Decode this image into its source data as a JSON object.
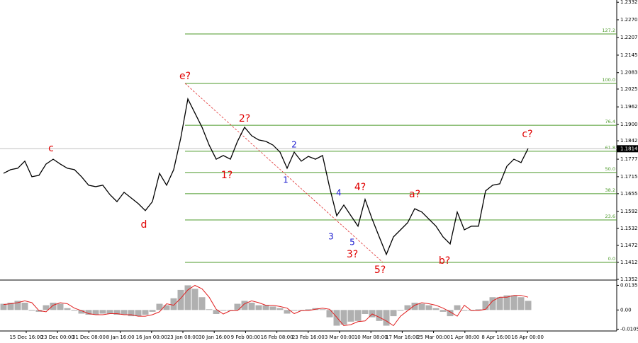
{
  "chart_data": [
    {
      "type": "line",
      "color": "#000000",
      "values": [
        1.1727,
        1.174,
        1.1745,
        1.177,
        1.1715,
        1.172,
        1.176,
        1.1777,
        1.176,
        1.1745,
        1.174,
        1.1715,
        1.1685,
        1.168,
        1.1685,
        1.1652,
        1.1627,
        1.166,
        1.164,
        1.162,
        1.1595,
        1.1627,
        1.1727,
        1.1685,
        1.174,
        1.1852,
        1.199,
        1.194,
        1.189,
        1.1827,
        1.1777,
        1.179,
        1.1777,
        1.184,
        1.189,
        1.186,
        1.1845,
        1.184,
        1.1827,
        1.1802,
        1.1745,
        1.1802,
        1.177,
        1.1787,
        1.1777,
        1.179,
        1.1677,
        1.1577,
        1.1615,
        1.1577,
        1.154,
        1.1635,
        1.1565,
        1.1502,
        1.144,
        1.1502,
        1.1527,
        1.1552,
        1.1602,
        1.159,
        1.1565,
        1.154,
        1.1502,
        1.1477,
        1.159,
        1.1527,
        1.154,
        1.154,
        1.1665,
        1.1685,
        1.169,
        1.1752,
        1.1777,
        1.1765,
        1.1815
      ],
      "ylim": [
        1.1352,
        1.234
      ],
      "yticks": [
        1.2332,
        {
          "value": 1.227,
          "label": "1.2270"
        },
        1.2207,
        1.2145,
        1.2083,
        1.2025,
        1.1962,
        {
          "value": 1.19,
          "label": "1.1900"
        },
        1.1842,
        1.1777,
        1.1715,
        1.1655,
        1.1592,
        1.1532,
        1.1472,
        1.1412,
        1.1352
      ],
      "current_price": 1.1814,
      "time_labels": [
        "15 Dec 16:00",
        "23 Dec 00:00",
        "31 Dec 08:00",
        "8 Jan 16:00",
        "16 Jan 00:00",
        "23 Jan 08:00",
        "30 Jan 16:00",
        "9 Feb 00:00",
        "16 Feb 08:00",
        "23 Feb 16:00",
        "3 Mar 00:00",
        "10 Mar 08:00",
        "17 Mar 16:00",
        "25 Mar 00:00",
        "1 Apr 08:00",
        "8 Apr 16:00",
        "16 Apr 00:00"
      ],
      "fib_color": "#4c9a2a",
      "fib_levels": [
        {
          "label": "0.0",
          "price": 1.1412
        },
        {
          "label": "23.6",
          "price": 1.1562
        },
        {
          "label": "38.2",
          "price": 1.1655
        },
        {
          "label": "50.0",
          "price": 1.173
        },
        {
          "label": "61.8",
          "price": 1.1805
        },
        {
          "label": "76.4",
          "price": 1.1897
        },
        {
          "label": "100.0",
          "price": 1.2045
        },
        {
          "label": "127.2",
          "price": 1.222
        }
      ],
      "trendline": {
        "i": [
          26.1,
          54
        ],
        "price": [
          1.2045,
          1.1412
        ],
        "color": "#e03030"
      },
      "waves": [
        {
          "text": "c",
          "i": 7.2,
          "price": 1.1815,
          "color": "#e00000"
        },
        {
          "text": "d",
          "i": 20.3,
          "price": 1.1545,
          "color": "#e00000"
        },
        {
          "text": "e?",
          "i": 26.1,
          "price": 1.207,
          "color": "#e00000"
        },
        {
          "text": "1?",
          "i": 32,
          "price": 1.172,
          "color": "#e00000"
        },
        {
          "text": "2?",
          "i": 34.5,
          "price": 1.192,
          "color": "#e00000"
        },
        {
          "text": "1",
          "i": 40.3,
          "price": 1.1702,
          "color": "#2020d0"
        },
        {
          "text": "2",
          "i": 41.5,
          "price": 1.1827,
          "color": "#2020d0"
        },
        {
          "text": "3",
          "i": 46.7,
          "price": 1.1502,
          "color": "#2020d0"
        },
        {
          "text": "4",
          "i": 47.8,
          "price": 1.1657,
          "color": "#2020d0"
        },
        {
          "text": "5",
          "i": 49.7,
          "price": 1.1482,
          "color": "#2020d0"
        },
        {
          "text": "3?",
          "i": 49.7,
          "price": 1.144,
          "color": "#e00000"
        },
        {
          "text": "4?",
          "i": 50.8,
          "price": 1.1677,
          "color": "#e00000"
        },
        {
          "text": "5?",
          "i": 53.6,
          "price": 1.1385,
          "color": "#e00000"
        },
        {
          "text": "a?",
          "i": 58.5,
          "price": 1.1652,
          "color": "#e00000"
        },
        {
          "text": "b?",
          "i": 62.7,
          "price": 1.1417,
          "color": "#e00000"
        },
        {
          "text": "c?",
          "i": 74.4,
          "price": 1.1865,
          "color": "#e00000"
        }
      ]
    },
    {
      "type": "bar",
      "color": "#b0b0b0",
      "values": [
        0.0034,
        0.004,
        0.005,
        0.004,
        -0.0004,
        -0.001,
        0.0026,
        0.004,
        0.0034,
        0.001,
        -0.0004,
        -0.002,
        -0.0026,
        -0.0026,
        -0.002,
        -0.002,
        -0.0026,
        -0.0026,
        -0.0034,
        -0.0034,
        -0.0026,
        -0.001,
        0.0034,
        0.0026,
        0.0064,
        0.011,
        0.0135,
        0.0116,
        0.007,
        0.0004,
        -0.0022,
        -0.0004,
        -0.0004,
        0.0034,
        0.005,
        0.004,
        0.0026,
        0.0026,
        0.0019,
        0.001,
        -0.002,
        -0.0004,
        -0.0004,
        0.0004,
        0.001,
        0.0004,
        -0.004,
        -0.0086,
        -0.008,
        -0.0064,
        -0.006,
        -0.0022,
        -0.004,
        -0.006,
        -0.0086,
        -0.0034,
        -0.0004,
        0.0026,
        0.004,
        0.0034,
        0.0026,
        0.001,
        -0.001,
        -0.0034,
        0.0026,
        -0.0004,
        -0.0004,
        0.0004,
        0.005,
        0.007,
        0.007,
        0.008,
        0.008,
        0.007,
        0.005
      ],
      "signal": {
        "color": "#e02020",
        "values": [
          0.003,
          0.0034,
          0.004,
          0.005,
          0.004,
          -0.0004,
          -0.001,
          0.0026,
          0.004,
          0.0034,
          0.001,
          -0.0004,
          -0.002,
          -0.0026,
          -0.0026,
          -0.002,
          -0.002,
          -0.0026,
          -0.0026,
          -0.0034,
          -0.0034,
          -0.0026,
          -0.001,
          0.0034,
          0.0026,
          0.0064,
          0.011,
          0.0135,
          0.0116,
          0.007,
          0.0004,
          -0.0022,
          -0.0004,
          -0.0004,
          0.0034,
          0.005,
          0.004,
          0.0026,
          0.0026,
          0.0019,
          0.001,
          -0.002,
          -0.0004,
          -0.0004,
          0.0004,
          0.001,
          0.0004,
          -0.004,
          -0.0086,
          -0.008,
          -0.0064,
          -0.006,
          -0.0022,
          -0.004,
          -0.006,
          -0.0086,
          -0.0034,
          -0.0004,
          0.0026,
          0.004,
          0.0034,
          0.0026,
          0.001,
          -0.001,
          -0.0034,
          0.0026,
          -0.0004,
          -0.0004,
          0.0004,
          0.005,
          0.007,
          0.007,
          0.008,
          0.008,
          0.007
        ]
      },
      "ylim": [
        -0.0115,
        0.016
      ],
      "yticks": [
        0.0135,
        {
          "value": 0,
          "label": "0.00"
        },
        -0.0105
      ]
    }
  ]
}
